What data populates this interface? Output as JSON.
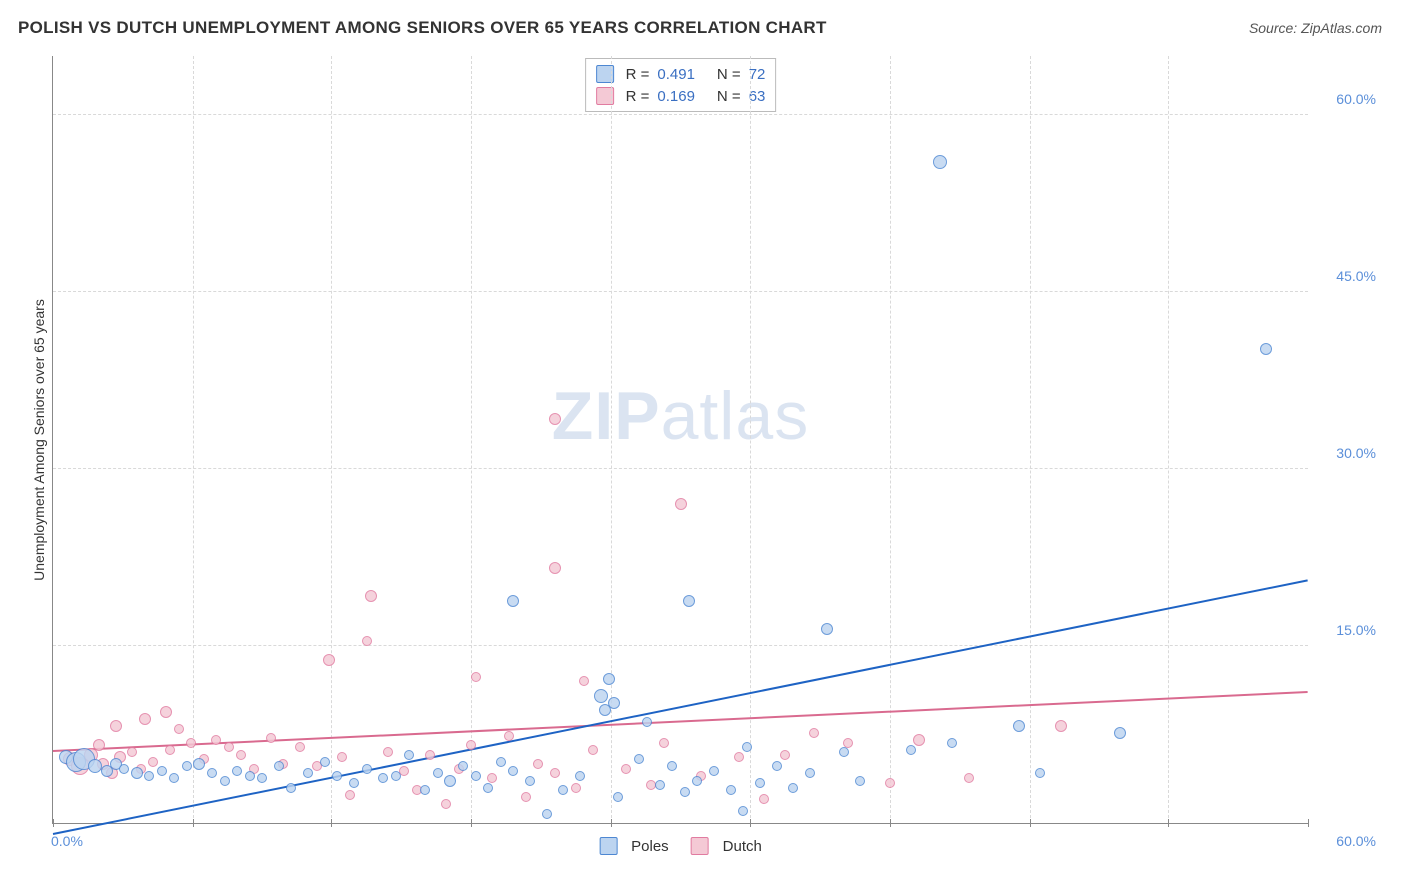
{
  "title": "POLISH VS DUTCH UNEMPLOYMENT AMONG SENIORS OVER 65 YEARS CORRELATION CHART",
  "source": "Source: ZipAtlas.com",
  "watermark": {
    "bold": "ZIP",
    "light": "atlas"
  },
  "chart": {
    "type": "scatter",
    "ylabel": "Unemployment Among Seniors over 65 years",
    "xlim": [
      0,
      60
    ],
    "ylim": [
      0,
      65
    ],
    "xtick_left": "0.0%",
    "xtick_right": "60.0%",
    "yticks": [
      {
        "v": 15,
        "label": "15.0%",
        "color": "#5b8fd9"
      },
      {
        "v": 30,
        "label": "30.0%",
        "color": "#5b8fd9"
      },
      {
        "v": 45,
        "label": "45.0%",
        "color": "#5b8fd9"
      },
      {
        "v": 60,
        "label": "60.0%",
        "color": "#5b8fd9"
      }
    ],
    "xtick_positions": [
      0,
      6.7,
      13.3,
      20,
      26.7,
      33.3,
      40,
      46.7,
      53.3,
      60
    ],
    "xtick_color": "#5b8fd9",
    "grid_color": "#d9d9d9",
    "background_color": "#ffffff",
    "series": {
      "poles": {
        "label": "Poles",
        "point_fill": "#bcd4f0",
        "point_stroke": "#4d87d2",
        "trend_color": "#1e63c4",
        "trend": {
          "x1": 0,
          "y1": -1.0,
          "x2": 60,
          "y2": 20.5
        },
        "r": "0.491",
        "n": "72",
        "points": [
          {
            "x": 0.6,
            "y": 5.6,
            "s": 14
          },
          {
            "x": 1.1,
            "y": 5.2,
            "s": 20
          },
          {
            "x": 1.5,
            "y": 5.4,
            "s": 22
          },
          {
            "x": 2.0,
            "y": 4.8,
            "s": 14
          },
          {
            "x": 2.6,
            "y": 4.4,
            "s": 12
          },
          {
            "x": 3.0,
            "y": 5.0,
            "s": 12
          },
          {
            "x": 3.4,
            "y": 4.6,
            "s": 10
          },
          {
            "x": 4.0,
            "y": 4.2,
            "s": 12
          },
          {
            "x": 4.6,
            "y": 4.0,
            "s": 10
          },
          {
            "x": 5.2,
            "y": 4.4,
            "s": 10
          },
          {
            "x": 5.8,
            "y": 3.8,
            "s": 10
          },
          {
            "x": 6.4,
            "y": 4.8,
            "s": 10
          },
          {
            "x": 7.0,
            "y": 5.0,
            "s": 12
          },
          {
            "x": 7.6,
            "y": 4.2,
            "s": 10
          },
          {
            "x": 8.2,
            "y": 3.6,
            "s": 10
          },
          {
            "x": 8.8,
            "y": 4.4,
            "s": 10
          },
          {
            "x": 9.4,
            "y": 4.0,
            "s": 10
          },
          {
            "x": 10.0,
            "y": 3.8,
            "s": 10
          },
          {
            "x": 10.8,
            "y": 4.8,
            "s": 10
          },
          {
            "x": 11.4,
            "y": 3.0,
            "s": 10
          },
          {
            "x": 12.2,
            "y": 4.2,
            "s": 10
          },
          {
            "x": 13.0,
            "y": 5.2,
            "s": 10
          },
          {
            "x": 13.6,
            "y": 4.0,
            "s": 10
          },
          {
            "x": 14.4,
            "y": 3.4,
            "s": 10
          },
          {
            "x": 15.0,
            "y": 4.6,
            "s": 10
          },
          {
            "x": 15.8,
            "y": 3.8,
            "s": 10
          },
          {
            "x": 16.4,
            "y": 4.0,
            "s": 10
          },
          {
            "x": 17.0,
            "y": 5.8,
            "s": 10
          },
          {
            "x": 17.8,
            "y": 2.8,
            "s": 10
          },
          {
            "x": 18.4,
            "y": 4.2,
            "s": 10
          },
          {
            "x": 19.0,
            "y": 3.6,
            "s": 12
          },
          {
            "x": 19.6,
            "y": 4.8,
            "s": 10
          },
          {
            "x": 20.2,
            "y": 4.0,
            "s": 10
          },
          {
            "x": 20.8,
            "y": 3.0,
            "s": 10
          },
          {
            "x": 21.4,
            "y": 5.2,
            "s": 10
          },
          {
            "x": 22.0,
            "y": 4.4,
            "s": 10
          },
          {
            "x": 22.0,
            "y": 18.8,
            "s": 12
          },
          {
            "x": 22.8,
            "y": 3.6,
            "s": 10
          },
          {
            "x": 23.6,
            "y": 0.8,
            "s": 10
          },
          {
            "x": 24.4,
            "y": 2.8,
            "s": 10
          },
          {
            "x": 25.2,
            "y": 4.0,
            "s": 10
          },
          {
            "x": 26.4,
            "y": 9.6,
            "s": 12
          },
          {
            "x": 26.2,
            "y": 10.8,
            "s": 14
          },
          {
            "x": 26.8,
            "y": 10.2,
            "s": 12
          },
          {
            "x": 26.6,
            "y": 12.2,
            "s": 12
          },
          {
            "x": 27.0,
            "y": 2.2,
            "s": 10
          },
          {
            "x": 28.0,
            "y": 5.4,
            "s": 10
          },
          {
            "x": 28.4,
            "y": 8.6,
            "s": 10
          },
          {
            "x": 29.0,
            "y": 3.2,
            "s": 10
          },
          {
            "x": 29.6,
            "y": 4.8,
            "s": 10
          },
          {
            "x": 30.2,
            "y": 2.6,
            "s": 10
          },
          {
            "x": 30.4,
            "y": 18.8,
            "s": 12
          },
          {
            "x": 30.8,
            "y": 3.6,
            "s": 10
          },
          {
            "x": 31.6,
            "y": 4.4,
            "s": 10
          },
          {
            "x": 32.4,
            "y": 2.8,
            "s": 10
          },
          {
            "x": 33.0,
            "y": 1.0,
            "s": 10
          },
          {
            "x": 33.8,
            "y": 3.4,
            "s": 10
          },
          {
            "x": 33.2,
            "y": 6.4,
            "s": 10
          },
          {
            "x": 34.6,
            "y": 4.8,
            "s": 10
          },
          {
            "x": 35.4,
            "y": 3.0,
            "s": 10
          },
          {
            "x": 36.2,
            "y": 4.2,
            "s": 10
          },
          {
            "x": 37.0,
            "y": 16.4,
            "s": 12
          },
          {
            "x": 37.8,
            "y": 6.0,
            "s": 10
          },
          {
            "x": 38.6,
            "y": 3.6,
            "s": 10
          },
          {
            "x": 41.0,
            "y": 6.2,
            "s": 10
          },
          {
            "x": 42.4,
            "y": 56.0,
            "s": 14
          },
          {
            "x": 43.0,
            "y": 6.8,
            "s": 10
          },
          {
            "x": 46.2,
            "y": 8.2,
            "s": 12
          },
          {
            "x": 47.2,
            "y": 4.2,
            "s": 10
          },
          {
            "x": 51.0,
            "y": 7.6,
            "s": 12
          },
          {
            "x": 58.0,
            "y": 40.2,
            "s": 12
          }
        ]
      },
      "dutch": {
        "label": "Dutch",
        "point_fill": "#f4c9d5",
        "point_stroke": "#e17ba0",
        "trend_color": "#d96a8f",
        "trend": {
          "x1": 0,
          "y1": 6.0,
          "x2": 60,
          "y2": 11.0
        },
        "r": "0.169",
        "n": "63",
        "points": [
          {
            "x": 0.8,
            "y": 5.4,
            "s": 14
          },
          {
            "x": 1.3,
            "y": 4.8,
            "s": 18
          },
          {
            "x": 1.8,
            "y": 5.8,
            "s": 14
          },
          {
            "x": 2.2,
            "y": 6.6,
            "s": 12
          },
          {
            "x": 2.4,
            "y": 5.0,
            "s": 12
          },
          {
            "x": 2.8,
            "y": 4.2,
            "s": 12
          },
          {
            "x": 3.2,
            "y": 5.6,
            "s": 12
          },
          {
            "x": 3.0,
            "y": 8.2,
            "s": 12
          },
          {
            "x": 3.8,
            "y": 6.0,
            "s": 10
          },
          {
            "x": 4.2,
            "y": 4.6,
            "s": 10
          },
          {
            "x": 4.4,
            "y": 8.8,
            "s": 12
          },
          {
            "x": 4.8,
            "y": 5.2,
            "s": 10
          },
          {
            "x": 5.4,
            "y": 9.4,
            "s": 12
          },
          {
            "x": 5.6,
            "y": 6.2,
            "s": 10
          },
          {
            "x": 6.0,
            "y": 8.0,
            "s": 10
          },
          {
            "x": 6.6,
            "y": 6.8,
            "s": 10
          },
          {
            "x": 7.2,
            "y": 5.4,
            "s": 10
          },
          {
            "x": 7.8,
            "y": 7.0,
            "s": 10
          },
          {
            "x": 8.4,
            "y": 6.4,
            "s": 10
          },
          {
            "x": 9.0,
            "y": 5.8,
            "s": 10
          },
          {
            "x": 9.6,
            "y": 4.6,
            "s": 10
          },
          {
            "x": 10.4,
            "y": 7.2,
            "s": 10
          },
          {
            "x": 11.0,
            "y": 5.0,
            "s": 10
          },
          {
            "x": 11.8,
            "y": 6.4,
            "s": 10
          },
          {
            "x": 12.6,
            "y": 4.8,
            "s": 10
          },
          {
            "x": 13.2,
            "y": 13.8,
            "s": 12
          },
          {
            "x": 13.8,
            "y": 5.6,
            "s": 10
          },
          {
            "x": 14.2,
            "y": 2.4,
            "s": 10
          },
          {
            "x": 15.0,
            "y": 15.4,
            "s": 10
          },
          {
            "x": 15.2,
            "y": 19.2,
            "s": 12
          },
          {
            "x": 16.0,
            "y": 6.0,
            "s": 10
          },
          {
            "x": 16.8,
            "y": 4.4,
            "s": 10
          },
          {
            "x": 17.4,
            "y": 2.8,
            "s": 10
          },
          {
            "x": 18.0,
            "y": 5.8,
            "s": 10
          },
          {
            "x": 18.8,
            "y": 1.6,
            "s": 10
          },
          {
            "x": 19.4,
            "y": 4.6,
            "s": 10
          },
          {
            "x": 20.0,
            "y": 6.6,
            "s": 10
          },
          {
            "x": 20.2,
            "y": 12.4,
            "s": 10
          },
          {
            "x": 21.0,
            "y": 3.8,
            "s": 10
          },
          {
            "x": 21.8,
            "y": 7.4,
            "s": 10
          },
          {
            "x": 22.6,
            "y": 2.2,
            "s": 10
          },
          {
            "x": 23.2,
            "y": 5.0,
            "s": 10
          },
          {
            "x": 24.0,
            "y": 4.2,
            "s": 10
          },
          {
            "x": 24.0,
            "y": 21.6,
            "s": 12
          },
          {
            "x": 24.0,
            "y": 34.2,
            "s": 12
          },
          {
            "x": 25.0,
            "y": 3.0,
            "s": 10
          },
          {
            "x": 25.4,
            "y": 12.0,
            "s": 10
          },
          {
            "x": 25.8,
            "y": 6.2,
            "s": 10
          },
          {
            "x": 27.4,
            "y": 4.6,
            "s": 10
          },
          {
            "x": 28.6,
            "y": 3.2,
            "s": 10
          },
          {
            "x": 29.2,
            "y": 6.8,
            "s": 10
          },
          {
            "x": 30.0,
            "y": 27.0,
            "s": 12
          },
          {
            "x": 31.0,
            "y": 4.0,
            "s": 10
          },
          {
            "x": 32.8,
            "y": 5.6,
            "s": 10
          },
          {
            "x": 34.0,
            "y": 2.0,
            "s": 10
          },
          {
            "x": 35.0,
            "y": 5.8,
            "s": 10
          },
          {
            "x": 36.4,
            "y": 7.6,
            "s": 10
          },
          {
            "x": 38.0,
            "y": 6.8,
            "s": 10
          },
          {
            "x": 40.0,
            "y": 3.4,
            "s": 10
          },
          {
            "x": 41.4,
            "y": 7.0,
            "s": 12
          },
          {
            "x": 43.8,
            "y": 3.8,
            "s": 10
          },
          {
            "x": 48.2,
            "y": 8.2,
            "s": 12
          }
        ]
      }
    },
    "legend_top_value_color": "#3a6fc2"
  }
}
